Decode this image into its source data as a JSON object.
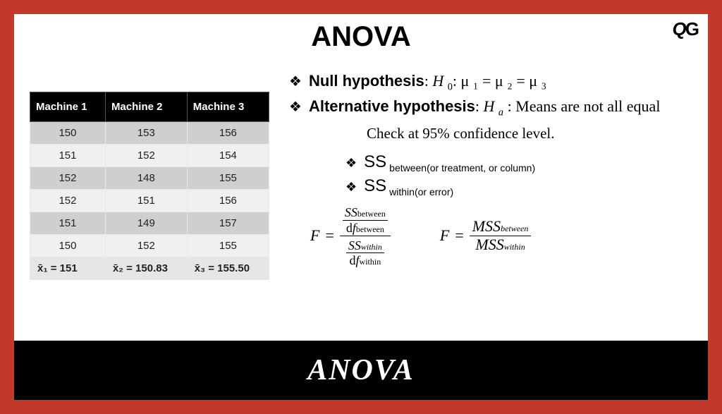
{
  "logo": {
    "q": "Q",
    "g": "G"
  },
  "title_top": "ANOVA",
  "title_bottom": "ANOVA",
  "table": {
    "headers": [
      "Machine 1",
      "Machine 2",
      "Machine 3"
    ],
    "rows": [
      [
        "150",
        "153",
        "156"
      ],
      [
        "151",
        "152",
        "154"
      ],
      [
        "152",
        "148",
        "155"
      ],
      [
        "152",
        "151",
        "156"
      ],
      [
        "151",
        "149",
        "157"
      ],
      [
        "150",
        "152",
        "155"
      ]
    ],
    "means": [
      "x̄₁ = 151",
      "x̄₂ = 150.83",
      "x̄₃ = 155.50"
    ]
  },
  "hypotheses": {
    "null_label": "Null hypothesis",
    "null_body_prefix": ": ",
    "null_symbol": "H",
    "null_sub": "0",
    "null_rest": ": μ ₁ = μ ₂ = μ ₃",
    "alt_label": "Alternative hypothesis",
    "alt_body_prefix": ": ",
    "alt_symbol": "H",
    "alt_sub": "a",
    "alt_rest": " : Means are not all equal"
  },
  "check_line": "Check at 95% confidence level.",
  "ss": {
    "label": "SS",
    "between_sub": "between(or treatment, or column)",
    "within_sub": "within(or error)"
  },
  "formula1": {
    "F": "F",
    "eq": "=",
    "outer_num_top": "SS",
    "outer_num_top_sub": "between",
    "outer_num_bot_pre": "d",
    "outer_num_bot_f": "f",
    "outer_num_bot_sub": "between",
    "outer_den_top": "SS",
    "outer_den_top_sub": "within",
    "outer_den_bot_pre": "d",
    "outer_den_bot_f": "f",
    "outer_den_bot_sub": "within"
  },
  "formula2": {
    "F": "F",
    "eq": "=",
    "num": "MSS",
    "num_sub": "between",
    "den": "MSS",
    "den_sub": "within"
  },
  "colors": {
    "frame_bg": "#c0392b",
    "panel_bg": "#ffffff",
    "banner_bg": "#000000",
    "table_header_bg": "#000000",
    "row_odd": "#cfcfcf",
    "row_even": "#f0f0f0"
  }
}
